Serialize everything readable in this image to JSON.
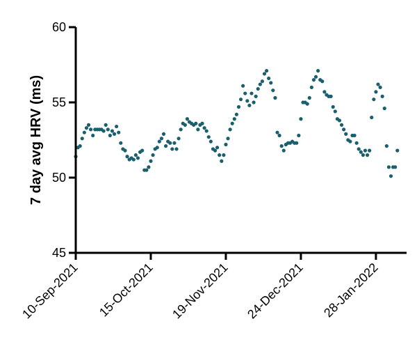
{
  "chart_data": {
    "type": "scatter",
    "ylabel": "7 day avg HRV (ms)",
    "xlabel": "",
    "ylim": [
      45,
      60
    ],
    "yticks": [
      45,
      50,
      55,
      60
    ],
    "x_tick_labels": [
      "10-Sep-2021",
      "15-Oct-2021",
      "19-Nov-2021",
      "24-Dec-2021",
      "28-Jan-2022"
    ],
    "x_tick_dates": [
      "2021-09-10",
      "2021-10-15",
      "2021-11-19",
      "2021-12-24",
      "2022-01-28"
    ],
    "xlim": [
      "2021-09-10",
      "2022-02-09"
    ],
    "grid": false,
    "marker_color": "#1a5f6e",
    "series": [
      {
        "points": [
          {
            "x": "2021-09-10",
            "y": 51.4
          },
          {
            "x": "2021-09-11",
            "y": 52.0
          },
          {
            "x": "2021-09-12",
            "y": 52.1
          },
          {
            "x": "2021-09-13",
            "y": 52.6
          },
          {
            "x": "2021-09-14",
            "y": 53.0
          },
          {
            "x": "2021-09-15",
            "y": 53.3
          },
          {
            "x": "2021-09-16",
            "y": 53.5
          },
          {
            "x": "2021-09-17",
            "y": 53.2
          },
          {
            "x": "2021-09-18",
            "y": 52.8
          },
          {
            "x": "2021-09-19",
            "y": 53.2
          },
          {
            "x": "2021-09-20",
            "y": 53.2
          },
          {
            "x": "2021-09-21",
            "y": 53.2
          },
          {
            "x": "2021-09-22",
            "y": 53.2
          },
          {
            "x": "2021-09-23",
            "y": 53.1
          },
          {
            "x": "2021-09-24",
            "y": 53.5
          },
          {
            "x": "2021-09-25",
            "y": 53.2
          },
          {
            "x": "2021-09-26",
            "y": 52.8
          },
          {
            "x": "2021-09-27",
            "y": 53.1
          },
          {
            "x": "2021-09-28",
            "y": 52.9
          },
          {
            "x": "2021-09-29",
            "y": 53.4
          },
          {
            "x": "2021-09-30",
            "y": 53.0
          },
          {
            "x": "2021-10-01",
            "y": 52.3
          },
          {
            "x": "2021-10-02",
            "y": 51.9
          },
          {
            "x": "2021-10-03",
            "y": 51.8
          },
          {
            "x": "2021-10-04",
            "y": 51.4
          },
          {
            "x": "2021-10-05",
            "y": 51.2
          },
          {
            "x": "2021-10-06",
            "y": 51.3
          },
          {
            "x": "2021-10-07",
            "y": 51.2
          },
          {
            "x": "2021-10-08",
            "y": 51.5
          },
          {
            "x": "2021-10-09",
            "y": 51.3
          },
          {
            "x": "2021-10-10",
            "y": 51.7
          },
          {
            "x": "2021-10-11",
            "y": 51.8
          },
          {
            "x": "2021-10-12",
            "y": 50.5
          },
          {
            "x": "2021-10-13",
            "y": 50.5
          },
          {
            "x": "2021-10-14",
            "y": 50.7
          },
          {
            "x": "2021-10-15",
            "y": 51.1
          },
          {
            "x": "2021-10-16",
            "y": 51.5
          },
          {
            "x": "2021-10-17",
            "y": 51.9
          },
          {
            "x": "2021-10-18",
            "y": 52.0
          },
          {
            "x": "2021-10-19",
            "y": 52.4
          },
          {
            "x": "2021-10-20",
            "y": 52.6
          },
          {
            "x": "2021-10-21",
            "y": 52.9
          },
          {
            "x": "2021-10-22",
            "y": 52.1
          },
          {
            "x": "2021-10-23",
            "y": 52.4
          },
          {
            "x": "2021-10-24",
            "y": 52.3
          },
          {
            "x": "2021-10-25",
            "y": 51.9
          },
          {
            "x": "2021-10-26",
            "y": 52.3
          },
          {
            "x": "2021-10-27",
            "y": 51.9
          },
          {
            "x": "2021-10-28",
            "y": 52.6
          },
          {
            "x": "2021-10-29",
            "y": 53.2
          },
          {
            "x": "2021-10-30",
            "y": 53.6
          },
          {
            "x": "2021-10-31",
            "y": 53.5
          },
          {
            "x": "2021-11-01",
            "y": 53.9
          },
          {
            "x": "2021-11-02",
            "y": 53.7
          },
          {
            "x": "2021-11-03",
            "y": 53.6
          },
          {
            "x": "2021-11-04",
            "y": 53.5
          },
          {
            "x": "2021-11-05",
            "y": 53.6
          },
          {
            "x": "2021-11-06",
            "y": 53.2
          },
          {
            "x": "2021-11-07",
            "y": 53.5
          },
          {
            "x": "2021-11-08",
            "y": 53.6
          },
          {
            "x": "2021-11-09",
            "y": 53.3
          },
          {
            "x": "2021-11-10",
            "y": 53.1
          },
          {
            "x": "2021-11-11",
            "y": 52.7
          },
          {
            "x": "2021-11-12",
            "y": 52.4
          },
          {
            "x": "2021-11-13",
            "y": 51.9
          },
          {
            "x": "2021-11-14",
            "y": 51.8
          },
          {
            "x": "2021-11-15",
            "y": 52.0
          },
          {
            "x": "2021-11-16",
            "y": 51.5
          },
          {
            "x": "2021-11-17",
            "y": 51.1
          },
          {
            "x": "2021-11-18",
            "y": 51.5
          },
          {
            "x": "2021-11-19",
            "y": 52.2
          },
          {
            "x": "2021-11-20",
            "y": 52.6
          },
          {
            "x": "2021-11-21",
            "y": 53.2
          },
          {
            "x": "2021-11-22",
            "y": 53.6
          },
          {
            "x": "2021-11-23",
            "y": 53.9
          },
          {
            "x": "2021-11-24",
            "y": 54.2
          },
          {
            "x": "2021-11-25",
            "y": 54.7
          },
          {
            "x": "2021-11-26",
            "y": 55.2
          },
          {
            "x": "2021-11-27",
            "y": 56.1
          },
          {
            "x": "2021-11-28",
            "y": 55.6
          },
          {
            "x": "2021-11-29",
            "y": 55.1
          },
          {
            "x": "2021-11-30",
            "y": 54.8
          },
          {
            "x": "2021-12-01",
            "y": 55.6
          },
          {
            "x": "2021-12-02",
            "y": 55.0
          },
          {
            "x": "2021-12-03",
            "y": 55.4
          },
          {
            "x": "2021-12-04",
            "y": 55.9
          },
          {
            "x": "2021-12-05",
            "y": 56.2
          },
          {
            "x": "2021-12-06",
            "y": 56.4
          },
          {
            "x": "2021-12-07",
            "y": 56.9
          },
          {
            "x": "2021-12-08",
            "y": 57.1
          },
          {
            "x": "2021-12-09",
            "y": 56.6
          },
          {
            "x": "2021-12-10",
            "y": 56.3
          },
          {
            "x": "2021-12-11",
            "y": 55.8
          },
          {
            "x": "2021-12-12",
            "y": 55.3
          },
          {
            "x": "2021-12-13",
            "y": 53.0
          },
          {
            "x": "2021-12-14",
            "y": 52.8
          },
          {
            "x": "2021-12-15",
            "y": 52.1
          },
          {
            "x": "2021-12-16",
            "y": 51.8
          },
          {
            "x": "2021-12-17",
            "y": 52.2
          },
          {
            "x": "2021-12-18",
            "y": 52.3
          },
          {
            "x": "2021-12-19",
            "y": 52.3
          },
          {
            "x": "2021-12-20",
            "y": 52.4
          },
          {
            "x": "2021-12-21",
            "y": 52.3
          },
          {
            "x": "2021-12-22",
            "y": 52.3
          },
          {
            "x": "2021-12-23",
            "y": 52.8
          },
          {
            "x": "2021-12-24",
            "y": 53.9
          },
          {
            "x": "2021-12-25",
            "y": 55.0
          },
          {
            "x": "2021-12-26",
            "y": 55.0
          },
          {
            "x": "2021-12-27",
            "y": 54.9
          },
          {
            "x": "2021-12-28",
            "y": 55.3
          },
          {
            "x": "2021-12-29",
            "y": 56.0
          },
          {
            "x": "2021-12-30",
            "y": 56.5
          },
          {
            "x": "2021-12-31",
            "y": 56.7
          },
          {
            "x": "2022-01-01",
            "y": 57.1
          },
          {
            "x": "2022-01-02",
            "y": 56.5
          },
          {
            "x": "2022-01-03",
            "y": 56.4
          },
          {
            "x": "2022-01-04",
            "y": 55.7
          },
          {
            "x": "2022-01-05",
            "y": 55.5
          },
          {
            "x": "2022-01-06",
            "y": 55.4
          },
          {
            "x": "2022-01-07",
            "y": 55.4
          },
          {
            "x": "2022-01-08",
            "y": 54.7
          },
          {
            "x": "2022-01-09",
            "y": 54.4
          },
          {
            "x": "2022-01-10",
            "y": 53.9
          },
          {
            "x": "2022-01-11",
            "y": 53.8
          },
          {
            "x": "2022-01-12",
            "y": 53.5
          },
          {
            "x": "2022-01-13",
            "y": 53.2
          },
          {
            "x": "2022-01-14",
            "y": 52.9
          },
          {
            "x": "2022-01-15",
            "y": 52.5
          },
          {
            "x": "2022-01-16",
            "y": 52.4
          },
          {
            "x": "2022-01-17",
            "y": 52.8
          },
          {
            "x": "2022-01-18",
            "y": 52.8
          },
          {
            "x": "2022-01-19",
            "y": 52.3
          },
          {
            "x": "2022-01-20",
            "y": 51.9
          },
          {
            "x": "2022-01-21",
            "y": 51.7
          },
          {
            "x": "2022-01-22",
            "y": 51.5
          },
          {
            "x": "2022-01-23",
            "y": 51.8
          },
          {
            "x": "2022-01-24",
            "y": 51.5
          },
          {
            "x": "2022-01-25",
            "y": 51.8
          },
          {
            "x": "2022-01-26",
            "y": 54.0
          },
          {
            "x": "2022-01-27",
            "y": 55.2
          },
          {
            "x": "2022-01-28",
            "y": 55.7
          },
          {
            "x": "2022-01-29",
            "y": 56.2
          },
          {
            "x": "2022-01-30",
            "y": 56.0
          },
          {
            "x": "2022-01-31",
            "y": 55.4
          },
          {
            "x": "2022-02-01",
            "y": 54.6
          },
          {
            "x": "2022-02-02",
            "y": 52.1
          },
          {
            "x": "2022-02-03",
            "y": 50.7
          },
          {
            "x": "2022-02-04",
            "y": 50.1
          },
          {
            "x": "2022-02-05",
            "y": 50.7
          },
          {
            "x": "2022-02-06",
            "y": 50.7
          },
          {
            "x": "2022-02-07",
            "y": 51.8
          }
        ]
      }
    ]
  }
}
